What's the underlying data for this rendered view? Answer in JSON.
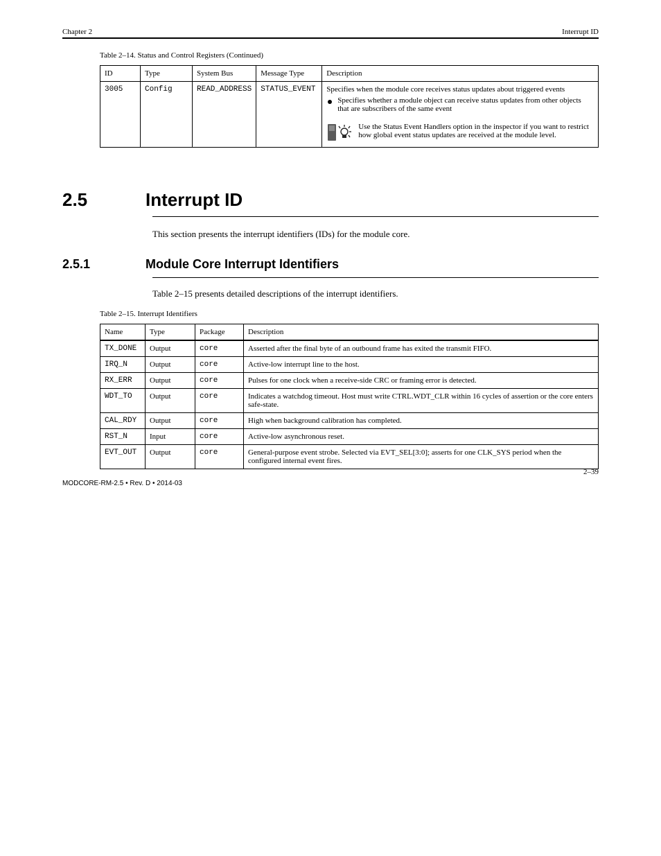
{
  "header": {
    "chapter": "Chapter 2",
    "title": "Interrupt ID"
  },
  "table1": {
    "caption": "Table 2–14. Status and Control Registers (Continued)",
    "columns": [
      "ID",
      "Type",
      "System Bus",
      "Message Type",
      "Description"
    ],
    "row": {
      "id": "3005",
      "type": "Config",
      "system_bus": "READ_ADDRESS",
      "message_type": "STATUS_EVENT",
      "description_head": "Specifies when the module core receives status updates about triggered events",
      "bullet": "Specifies whether a module object can receive status updates from other objects that are subscribers of the same event",
      "tip": "Use the Status Event Handlers option in the inspector if you want to restrict how global event status updates are received at the module level."
    }
  },
  "section": {
    "number": "2.5",
    "title": "Interrupt ID",
    "paragraph": "This section presents the interrupt identifiers (IDs) for the module core."
  },
  "subsection": {
    "number": "2.5.1",
    "title": "Module Core Interrupt Identifiers",
    "paragraph": "Table 2–15 presents detailed descriptions of the interrupt identifiers.",
    "table_caption": "Table 2–15. Interrupt Identifiers"
  },
  "table2": {
    "columns": [
      "Name",
      "Type",
      "Package",
      "Description"
    ],
    "rows": [
      {
        "name": "TX_DONE",
        "type": "Output",
        "package": "core",
        "description": "Asserted after the final byte of an outbound frame has exited the transmit FIFO."
      },
      {
        "name": "IRQ_N",
        "type": "Output",
        "package": "core",
        "description": "Active-low interrupt line to the host."
      },
      {
        "name": "RX_ERR",
        "type": "Output",
        "package": "core",
        "description": "Pulses for one clock when a receive-side CRC or framing error is detected."
      },
      {
        "name": "WDT_TO",
        "type": "Output",
        "package": "core",
        "description": "Indicates a watchdog timeout. Host must write CTRL.WDT_CLR within 16 cycles of assertion or the core enters safe-state."
      },
      {
        "name": "CAL_RDY",
        "type": "Output",
        "package": "core",
        "description": "High when background calibration has completed."
      },
      {
        "name": "RST_N",
        "type": "Input",
        "package": "core",
        "description": "Active-low asynchronous reset."
      },
      {
        "name": "EVT_OUT",
        "type": "Output",
        "package": "core",
        "description": "General-purpose event strobe. Selected via EVT_SEL[3:0]; asserts for one CLK_SYS period when the configured internal event fires."
      }
    ]
  },
  "footer": {
    "page_number": "2–39",
    "doc_code": "MODCORE-RM-2.5 • Rev. D • 2014-03"
  }
}
